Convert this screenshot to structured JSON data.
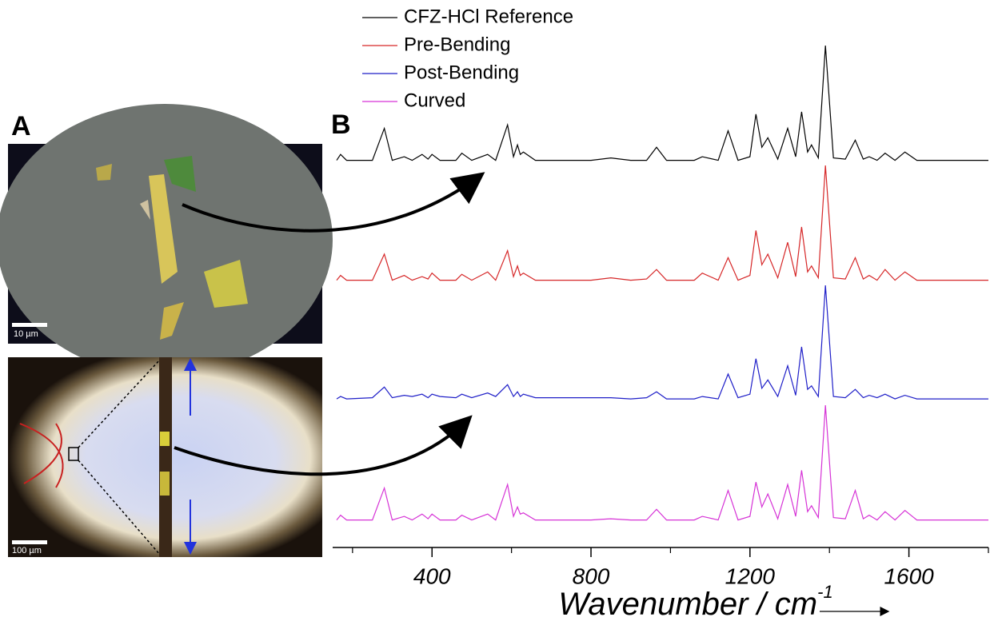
{
  "panels": {
    "a_label": "A",
    "b_label": "B",
    "scale_bar_top": "10 µm",
    "scale_bar_bottom": "100 µm"
  },
  "chart_data": {
    "type": "line",
    "x_label": "Wavenumber / cm",
    "x_label_sup": "-1",
    "xlim": [
      150,
      1800
    ],
    "xticks": [
      400,
      800,
      1200,
      1600
    ],
    "xminor_ticks": [
      200,
      600,
      1000,
      1400,
      1800
    ],
    "ylim": [
      0,
      100
    ],
    "legend": "top",
    "x": [
      160,
      170,
      185,
      250,
      280,
      300,
      330,
      350,
      375,
      390,
      400,
      420,
      460,
      475,
      500,
      540,
      560,
      590,
      605,
      615,
      622,
      630,
      660,
      800,
      850,
      900,
      940,
      965,
      990,
      1060,
      1080,
      1120,
      1145,
      1170,
      1200,
      1215,
      1230,
      1245,
      1270,
      1295,
      1315,
      1330,
      1345,
      1355,
      1372,
      1390,
      1410,
      1440,
      1465,
      1485,
      1500,
      1520,
      1540,
      1565,
      1590,
      1620,
      1800
    ],
    "series": [
      {
        "name": "CFZ-HCl Reference",
        "color": "#000000",
        "values": [
          3,
          8,
          3,
          3,
          30,
          3,
          6,
          3,
          8,
          4,
          8,
          3,
          3,
          9,
          3,
          8,
          3,
          33,
          6,
          16,
          8,
          10,
          3,
          3,
          5,
          3,
          3,
          14,
          3,
          3,
          6,
          3,
          28,
          3,
          6,
          42,
          14,
          22,
          4,
          30,
          6,
          44,
          10,
          16,
          5,
          100,
          5,
          4,
          20,
          4,
          6,
          3,
          9,
          3,
          10,
          3,
          3
        ]
      },
      {
        "name": "Pre-Bending",
        "color": "#d62728",
        "values": [
          3,
          7,
          3,
          3,
          25,
          3,
          7,
          3,
          6,
          4,
          9,
          3,
          3,
          8,
          3,
          10,
          3,
          28,
          6,
          15,
          7,
          9,
          3,
          3,
          5,
          3,
          4,
          12,
          3,
          3,
          9,
          3,
          22,
          3,
          7,
          45,
          16,
          25,
          5,
          35,
          6,
          48,
          10,
          15,
          5,
          100,
          5,
          4,
          22,
          4,
          7,
          3,
          12,
          3,
          10,
          3,
          3
        ]
      },
      {
        "name": "Post-Bending",
        "color": "#1f1fc8",
        "values": [
          4,
          6,
          4,
          5,
          14,
          5,
          7,
          6,
          8,
          5,
          8,
          6,
          5,
          8,
          5,
          9,
          6,
          16,
          6,
          10,
          6,
          8,
          5,
          5,
          5,
          4,
          5,
          10,
          4,
          4,
          6,
          4,
          25,
          5,
          8,
          38,
          13,
          20,
          6,
          32,
          7,
          48,
          12,
          15,
          6,
          100,
          6,
          5,
          12,
          5,
          7,
          5,
          8,
          4,
          7,
          4,
          4
        ]
      },
      {
        "name": "Curved",
        "color": "#d633d6",
        "values": [
          3,
          7,
          3,
          3,
          30,
          3,
          6,
          3,
          8,
          4,
          8,
          3,
          3,
          7,
          3,
          8,
          3,
          33,
          6,
          14,
          8,
          9,
          3,
          3,
          4,
          3,
          3,
          12,
          3,
          3,
          6,
          3,
          28,
          3,
          6,
          35,
          14,
          25,
          4,
          33,
          6,
          45,
          10,
          15,
          5,
          100,
          5,
          4,
          28,
          4,
          7,
          3,
          10,
          3,
          11,
          3,
          3
        ]
      }
    ]
  }
}
